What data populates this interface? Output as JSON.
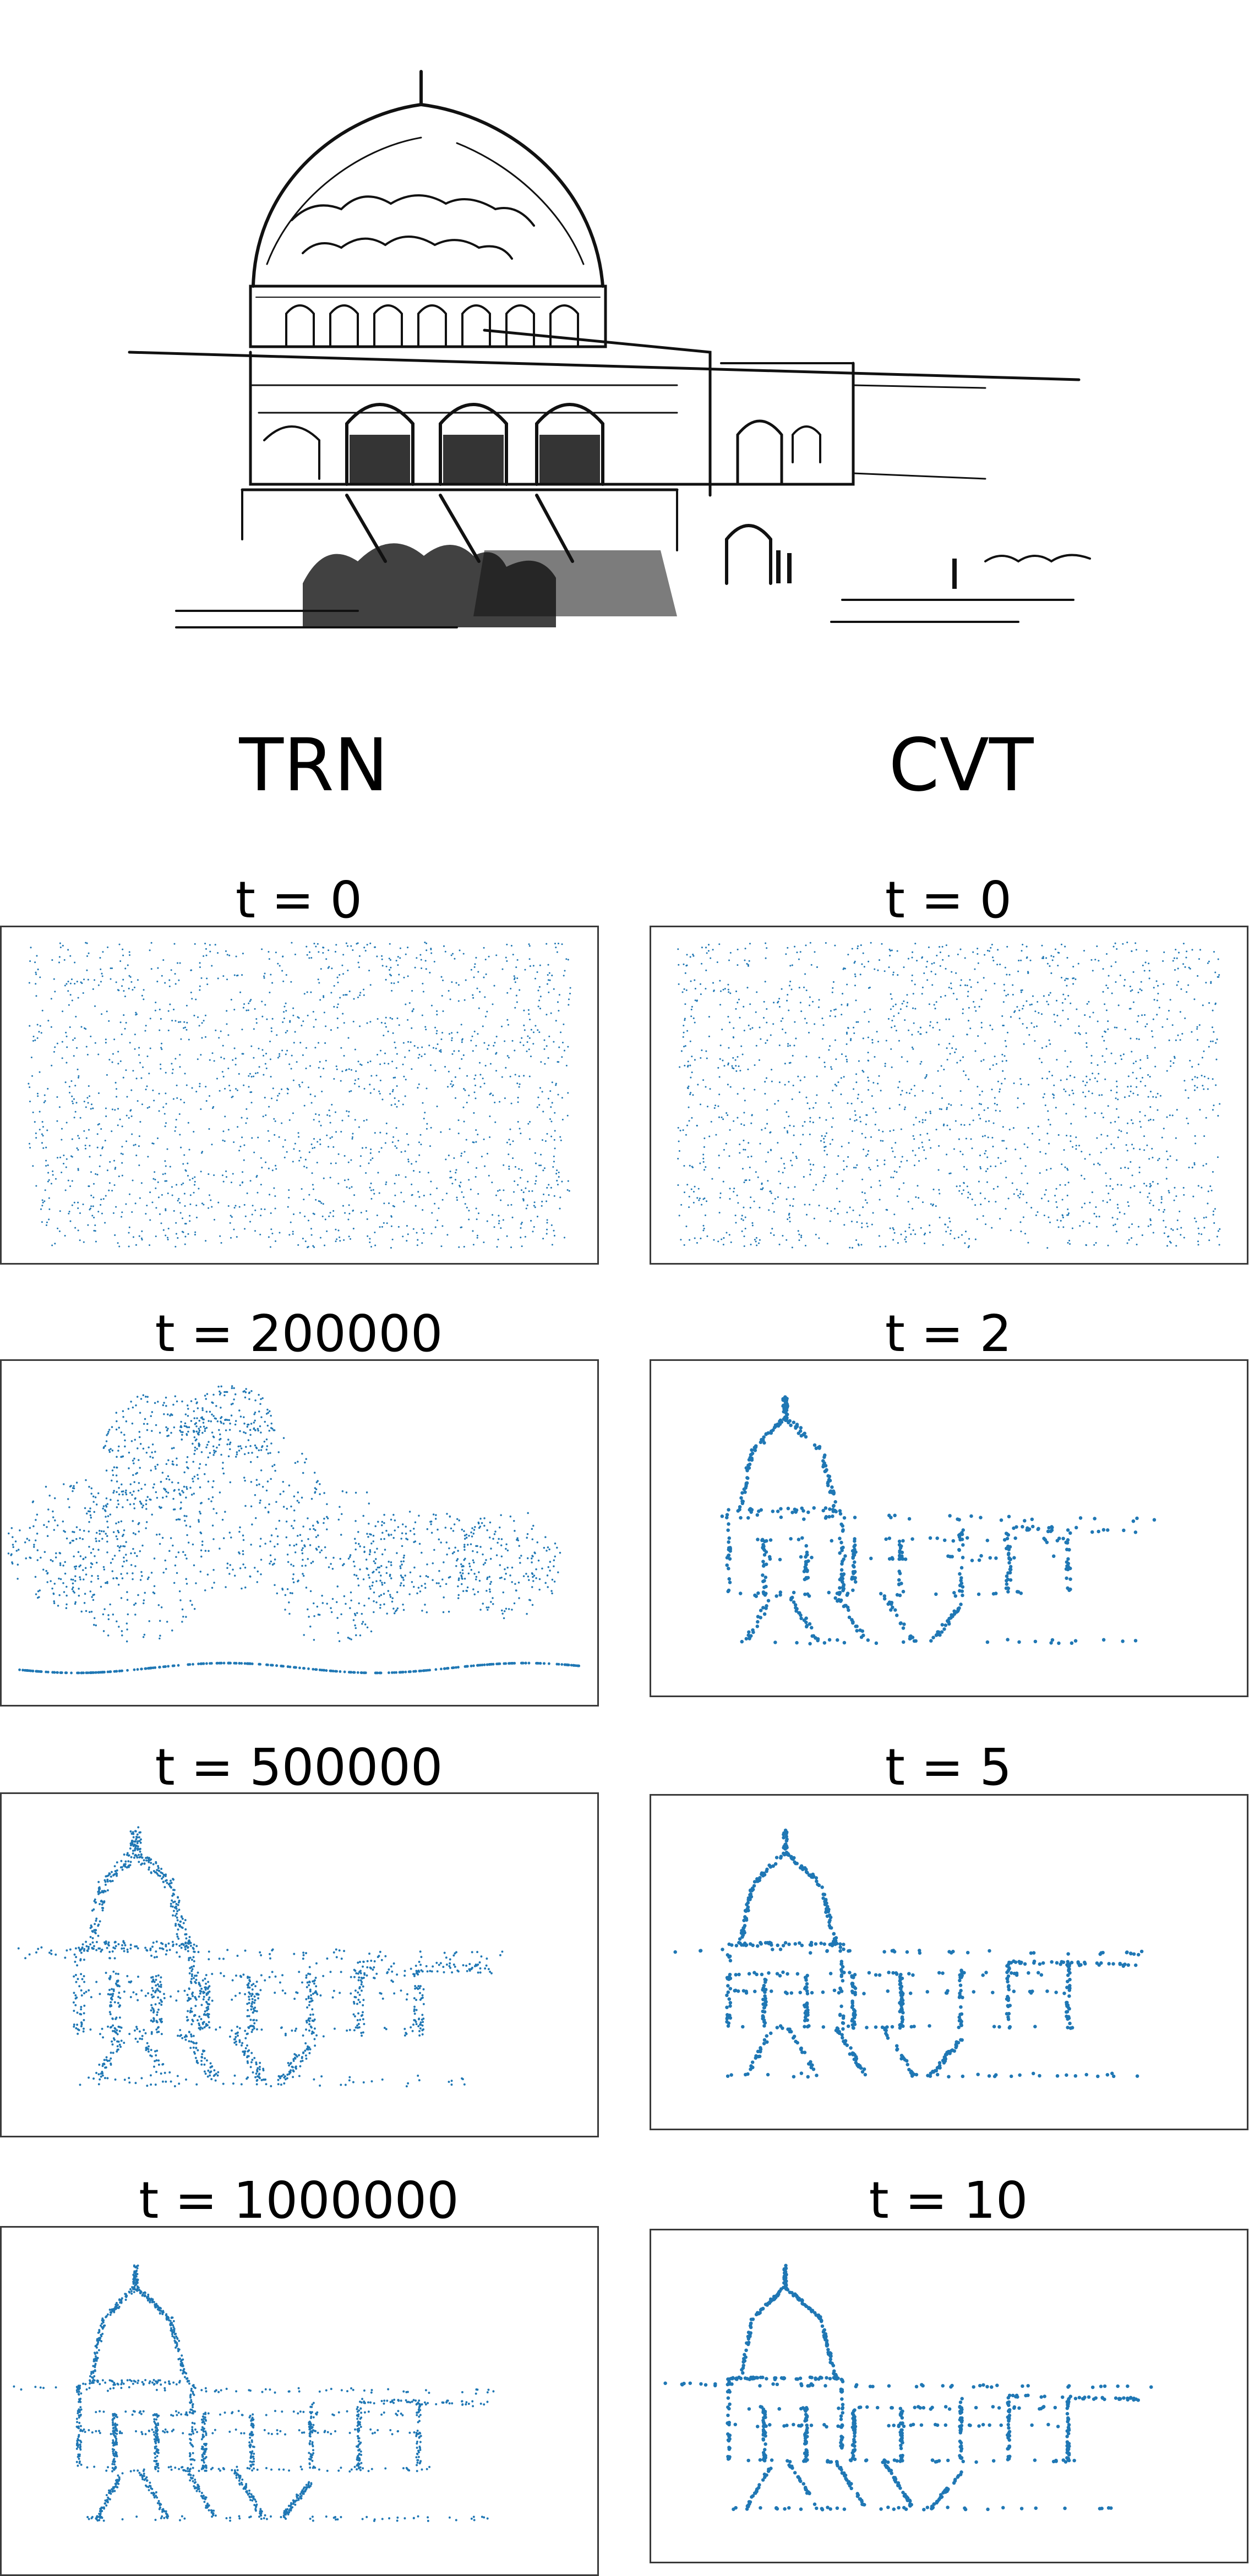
{
  "columns": [
    {
      "label": "TRN",
      "panels": [
        {
          "title": "t = 0",
          "stage": "random"
        },
        {
          "title": "t = 200000",
          "stage": "blob"
        },
        {
          "title": "t = 500000",
          "stage": "rough"
        },
        {
          "title": "t = 1000000",
          "stage": "fine"
        }
      ]
    },
    {
      "label": "CVT",
      "panels": [
        {
          "title": "t = 0",
          "stage": "random"
        },
        {
          "title": "t = 2",
          "stage": "sketch"
        },
        {
          "title": "t = 5",
          "stage": "sketch"
        },
        {
          "title": "t = 10",
          "stage": "sketch"
        }
      ]
    }
  ],
  "colors": {
    "points": "#1f77b4",
    "ink": "#111111",
    "frame": "#3a3a3a"
  }
}
